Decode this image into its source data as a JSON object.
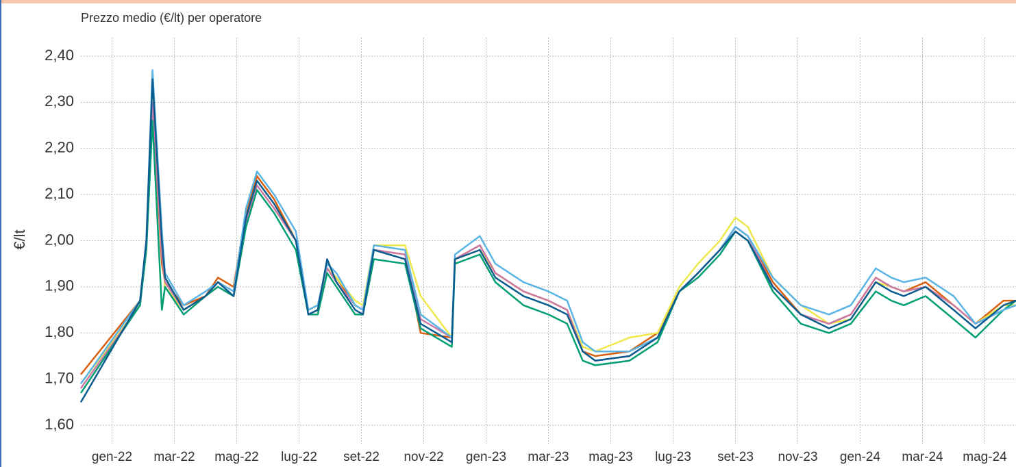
{
  "chart_data": {
    "type": "line",
    "title": "Prezzo medio (€/lt) per operatore",
    "ylabel": "€/lt",
    "x": [
      0,
      1.9,
      2.1,
      2.3,
      2.6,
      2.7,
      3.3,
      4.0,
      4.4,
      4.9,
      5.3,
      5.65,
      6.2,
      6.9,
      7.3,
      7.6,
      7.9,
      8.2,
      8.8,
      9.05,
      9.4,
      10.4,
      10.9,
      11.9,
      12.0,
      12.8,
      13.3,
      14.2,
      15.0,
      15.6,
      16.1,
      16.5,
      17.6,
      18.5,
      19.2,
      19.8,
      20.5,
      21.0,
      21.4,
      22.2,
      23.1,
      24.0,
      24.7,
      25.5,
      26.0,
      26.4,
      27.1,
      28.0,
      28.7,
      29.6,
      30.0
    ],
    "xlim": [
      0,
      30
    ],
    "xticks": [
      {
        "value": 1,
        "label": "gen-22"
      },
      {
        "value": 3,
        "label": "mar-22"
      },
      {
        "value": 5,
        "label": "mag-22"
      },
      {
        "value": 7,
        "label": "lug-22"
      },
      {
        "value": 9,
        "label": "set-22"
      },
      {
        "value": 11,
        "label": "nov-22"
      },
      {
        "value": 13,
        "label": "gen-23"
      },
      {
        "value": 15,
        "label": "mar-23"
      },
      {
        "value": 17,
        "label": "mag-23"
      },
      {
        "value": 19,
        "label": "lug-23"
      },
      {
        "value": 21,
        "label": "set-23"
      },
      {
        "value": 23,
        "label": "nov-23"
      },
      {
        "value": 25,
        "label": "gen-24"
      },
      {
        "value": 27,
        "label": "mar-24"
      },
      {
        "value": 29,
        "label": "mag-24"
      }
    ],
    "ylim": [
      1.56,
      2.44
    ],
    "yticks": [
      {
        "value": 1.6,
        "label": "1,60"
      },
      {
        "value": 1.7,
        "label": "1,70"
      },
      {
        "value": 1.8,
        "label": "1,80"
      },
      {
        "value": 1.9,
        "label": "1,90"
      },
      {
        "value": 2.0,
        "label": "2,00"
      },
      {
        "value": 2.1,
        "label": "2,10"
      },
      {
        "value": 2.2,
        "label": "2,20"
      },
      {
        "value": 2.3,
        "label": "2,30"
      },
      {
        "value": 2.4,
        "label": "2,40"
      }
    ],
    "grid": true,
    "series": [
      {
        "color": "#d95f0e",
        "values": [
          1.71,
          1.87,
          1.98,
          2.3,
          1.95,
          1.91,
          1.86,
          1.88,
          1.92,
          1.9,
          2.06,
          2.14,
          2.09,
          2.0,
          1.85,
          1.86,
          1.94,
          1.92,
          1.86,
          1.85,
          1.98,
          1.97,
          1.8,
          1.79,
          1.96,
          1.99,
          1.93,
          1.89,
          1.87,
          1.85,
          1.76,
          1.75,
          1.76,
          1.8,
          1.89,
          1.93,
          1.98,
          2.03,
          2.01,
          1.91,
          1.84,
          1.82,
          1.84,
          1.92,
          1.9,
          1.89,
          1.91,
          1.86,
          1.82,
          1.87,
          1.87
        ]
      },
      {
        "color": "#eee84a",
        "values": [
          1.69,
          1.86,
          1.99,
          2.33,
          1.98,
          1.9,
          1.85,
          1.88,
          1.91,
          1.89,
          2.04,
          2.12,
          2.07,
          2.0,
          1.85,
          1.86,
          1.94,
          1.92,
          1.87,
          1.86,
          1.99,
          1.99,
          1.88,
          1.79,
          1.96,
          1.98,
          1.93,
          1.89,
          1.87,
          1.85,
          1.77,
          1.76,
          1.79,
          1.8,
          1.9,
          1.95,
          2.0,
          2.05,
          2.03,
          1.92,
          1.86,
          1.82,
          1.83,
          1.91,
          1.9,
          1.89,
          1.9,
          1.86,
          1.82,
          1.86,
          1.86
        ]
      },
      {
        "color": "#cc79a7",
        "values": [
          1.68,
          1.86,
          1.99,
          2.3,
          1.97,
          1.91,
          1.85,
          1.88,
          1.9,
          1.88,
          2.04,
          2.12,
          2.07,
          2.0,
          1.84,
          1.85,
          1.94,
          1.91,
          1.86,
          1.85,
          1.98,
          1.97,
          1.83,
          1.79,
          1.96,
          1.99,
          1.93,
          1.89,
          1.87,
          1.85,
          1.76,
          1.74,
          1.75,
          1.79,
          1.89,
          1.93,
          1.98,
          2.03,
          2.01,
          1.9,
          1.84,
          1.82,
          1.84,
          1.92,
          1.9,
          1.89,
          1.9,
          1.86,
          1.82,
          1.85,
          1.86
        ]
      },
      {
        "color": "#009e73",
        "values": [
          1.67,
          1.86,
          1.98,
          2.26,
          1.85,
          1.9,
          1.84,
          1.88,
          1.9,
          1.88,
          2.03,
          2.11,
          2.06,
          1.98,
          1.84,
          1.84,
          1.93,
          1.9,
          1.84,
          1.84,
          1.96,
          1.95,
          1.81,
          1.77,
          1.95,
          1.97,
          1.91,
          1.86,
          1.84,
          1.82,
          1.74,
          1.73,
          1.74,
          1.78,
          1.89,
          1.92,
          1.97,
          2.02,
          2.0,
          1.89,
          1.82,
          1.8,
          1.82,
          1.89,
          1.87,
          1.86,
          1.88,
          1.83,
          1.79,
          1.85,
          1.87
        ]
      },
      {
        "color": "#5ab4e5",
        "values": [
          1.69,
          1.87,
          2.0,
          2.37,
          2.02,
          1.93,
          1.86,
          1.89,
          1.91,
          1.89,
          2.07,
          2.15,
          2.1,
          2.02,
          1.85,
          1.86,
          1.95,
          1.93,
          1.86,
          1.85,
          1.99,
          1.98,
          1.84,
          1.79,
          1.97,
          2.01,
          1.95,
          1.91,
          1.89,
          1.87,
          1.78,
          1.76,
          1.76,
          1.79,
          1.89,
          1.93,
          1.98,
          2.03,
          2.01,
          1.92,
          1.86,
          1.84,
          1.86,
          1.94,
          1.92,
          1.91,
          1.92,
          1.88,
          1.82,
          1.85,
          1.86
        ]
      },
      {
        "color": "#0b5c8e",
        "values": [
          1.65,
          1.87,
          2.0,
          2.35,
          2.0,
          1.92,
          1.85,
          1.88,
          1.91,
          1.88,
          2.05,
          2.13,
          2.08,
          2.0,
          1.84,
          1.85,
          1.96,
          1.91,
          1.85,
          1.84,
          1.98,
          1.96,
          1.82,
          1.78,
          1.96,
          1.98,
          1.92,
          1.88,
          1.86,
          1.84,
          1.76,
          1.74,
          1.75,
          1.79,
          1.89,
          1.93,
          1.98,
          2.02,
          2.0,
          1.9,
          1.84,
          1.81,
          1.83,
          1.91,
          1.89,
          1.88,
          1.9,
          1.85,
          1.81,
          1.86,
          1.87
        ]
      }
    ]
  }
}
